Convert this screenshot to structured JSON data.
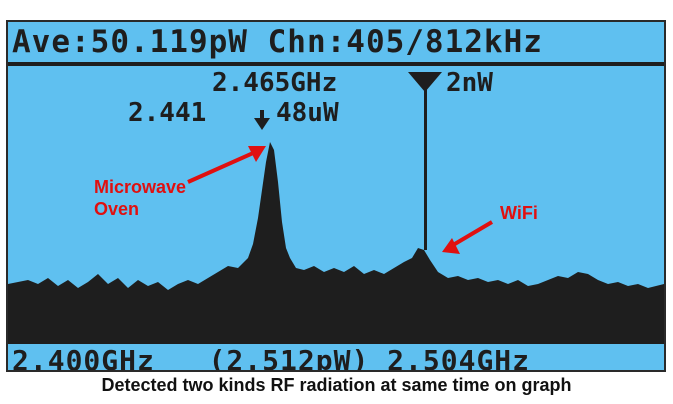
{
  "header": {
    "readout": "Ave:50.119pW Chn:405/812kHz"
  },
  "markers": {
    "marker1": {
      "freq_label": "2.465GHz",
      "level_label": "2nW"
    },
    "marker2": {
      "freq_label": "2.441",
      "level_label": "48uW"
    }
  },
  "footer": {
    "start_freq": "2.400GHz",
    "ref_level": "(2.512pW)",
    "stop_freq": "2.504GHz"
  },
  "annotations": {
    "microwave_line1": "Microwave",
    "microwave_line2": "Oven",
    "wifi": "WiFi"
  },
  "caption": "Detected two kinds RF radiation at same time on graph",
  "colors": {
    "screen_bg": "#5fc0f0",
    "trace": "#1e1e1e",
    "annotation": "#e01010"
  }
}
